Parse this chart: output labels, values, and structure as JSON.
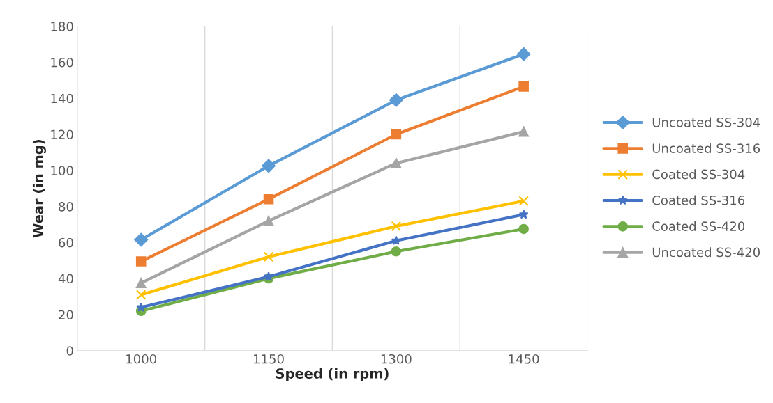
{
  "chart_data": {
    "type": "line",
    "xlabel": "Speed (in rpm)",
    "ylabel": "Wear (in mg)",
    "categories": [
      "1000",
      "1150",
      "1300",
      "1450"
    ],
    "ylim": [
      0,
      180
    ],
    "yticks": [
      0,
      20,
      40,
      60,
      80,
      100,
      120,
      140,
      160,
      180
    ],
    "grid": "x",
    "legend": "right",
    "line_style": "solid",
    "series": [
      {
        "name": "Uncoated SS-304",
        "color": "#5b9bd5",
        "marker": "diamond",
        "values": [
          61.5,
          102.5,
          139,
          164.5
        ]
      },
      {
        "name": "Uncoated SS-316",
        "color": "#ed7d31",
        "marker": "square",
        "values": [
          49.5,
          84,
          120,
          146.5
        ]
      },
      {
        "name": "Coated SS-304",
        "color": "#ffc000",
        "marker": "cross",
        "values": [
          31,
          52,
          69,
          83
        ]
      },
      {
        "name": "Coated SS-316",
        "color": "#4472c4",
        "marker": "star",
        "values": [
          24,
          41,
          61,
          75.5
        ]
      },
      {
        "name": "Coated SS-420",
        "color": "#70ad47",
        "marker": "circle",
        "values": [
          22,
          40,
          55,
          67.5
        ]
      },
      {
        "name": "Uncoated SS-420",
        "color": "#a5a5a5",
        "marker": "triangle",
        "values": [
          37.5,
          72,
          104,
          121.5
        ]
      }
    ]
  }
}
